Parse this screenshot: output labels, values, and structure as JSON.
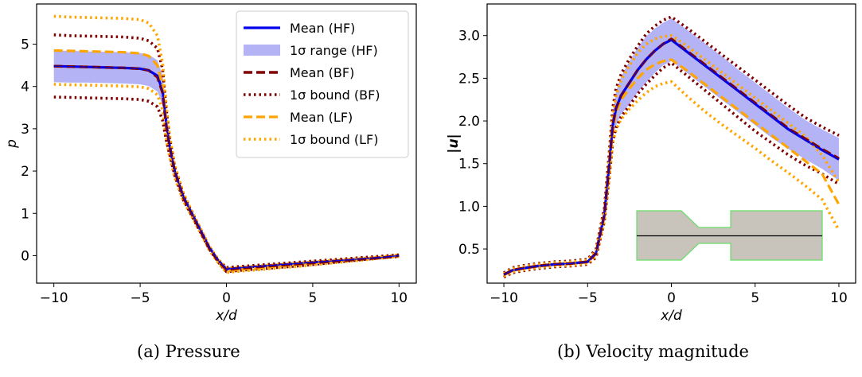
{
  "colors": {
    "hf": "#0000ee",
    "hf_band": "#b3b3f5",
    "bf": "#800000",
    "lf": "#ffa500",
    "inset_fill": "#c8c4bc",
    "inset_edge": "#66dd66"
  },
  "captions": {
    "a": "(a) Pressure",
    "b": "(b) Velocity magnitude"
  },
  "legend": [
    {
      "label": "Mean (HF)",
      "style": "solid-blue"
    },
    {
      "label": "1σ range (HF)",
      "style": "band"
    },
    {
      "label": "Mean (BF)",
      "style": "dash-bf"
    },
    {
      "label": "1σ bound (BF)",
      "style": "dot-bf"
    },
    {
      "label": "Mean (LF)",
      "style": "dash-lf"
    },
    {
      "label": "1σ bound (LF)",
      "style": "dot-lf"
    }
  ],
  "chart_data": [
    {
      "type": "line",
      "title": "",
      "xlabel": "x/d",
      "ylabel": "p",
      "xlim": [
        -11,
        11
      ],
      "ylim": [
        -0.65,
        5.95
      ],
      "xticks": [
        -10,
        -5,
        0,
        5,
        10
      ],
      "xtick_labels": [
        "−10",
        "−5",
        "0",
        "5",
        "10"
      ],
      "yticks": [
        0,
        1,
        2,
        3,
        4,
        5
      ],
      "ytick_labels": [
        "0",
        "1",
        "2",
        "3",
        "4",
        "5"
      ],
      "x": [
        -10,
        -9,
        -8,
        -7,
        -6,
        -5,
        -4.5,
        -4,
        -3.7,
        -3.5,
        -3.3,
        -3,
        -2.5,
        -2,
        -1.5,
        -1,
        -0.5,
        0,
        1,
        2,
        3,
        4,
        5,
        6,
        7,
        8,
        9,
        10
      ],
      "series": [
        {
          "name": "Mean (HF)",
          "values": [
            4.48,
            4.47,
            4.46,
            4.45,
            4.44,
            4.42,
            4.38,
            4.25,
            3.9,
            3.2,
            2.6,
            2.0,
            1.4,
            1.0,
            0.6,
            0.2,
            -0.1,
            -0.32,
            -0.28,
            -0.25,
            -0.22,
            -0.19,
            -0.16,
            -0.13,
            -0.1,
            -0.07,
            -0.04,
            0.0
          ]
        },
        {
          "name": "1σ range (HF) upper",
          "values": [
            4.85,
            4.84,
            4.83,
            4.82,
            4.81,
            4.79,
            4.75,
            4.62,
            4.25,
            3.5,
            2.8,
            2.1,
            1.45,
            1.03,
            0.62,
            0.21,
            -0.09,
            -0.3,
            -0.26,
            -0.23,
            -0.2,
            -0.17,
            -0.14,
            -0.11,
            -0.08,
            -0.05,
            -0.02,
            0.02
          ]
        },
        {
          "name": "1σ range (HF) lower",
          "values": [
            4.1,
            4.09,
            4.09,
            4.08,
            4.07,
            4.05,
            4.01,
            3.88,
            3.55,
            2.9,
            2.4,
            1.9,
            1.35,
            0.97,
            0.58,
            0.19,
            -0.11,
            -0.34,
            -0.3,
            -0.27,
            -0.24,
            -0.21,
            -0.18,
            -0.15,
            -0.12,
            -0.09,
            -0.06,
            -0.02
          ]
        },
        {
          "name": "Mean (BF)",
          "values": [
            4.48,
            4.47,
            4.46,
            4.45,
            4.44,
            4.42,
            4.38,
            4.22,
            3.85,
            3.1,
            2.6,
            2.0,
            1.38,
            0.98,
            0.58,
            0.18,
            -0.12,
            -0.33,
            -0.29,
            -0.26,
            -0.23,
            -0.2,
            -0.17,
            -0.14,
            -0.11,
            -0.08,
            -0.05,
            0.0
          ]
        },
        {
          "name": "1σ bound (BF) upper",
          "values": [
            5.22,
            5.2,
            5.19,
            5.18,
            5.17,
            5.14,
            5.08,
            4.9,
            4.4,
            3.5,
            2.8,
            2.1,
            1.45,
            1.03,
            0.62,
            0.21,
            -0.09,
            -0.28,
            -0.25,
            -0.22,
            -0.19,
            -0.16,
            -0.13,
            -0.1,
            -0.07,
            -0.04,
            -0.01,
            0.02
          ]
        },
        {
          "name": "1σ bound (BF) lower",
          "values": [
            3.75,
            3.74,
            3.73,
            3.72,
            3.71,
            3.69,
            3.65,
            3.52,
            3.2,
            2.75,
            2.4,
            1.9,
            1.32,
            0.94,
            0.55,
            0.16,
            -0.14,
            -0.38,
            -0.34,
            -0.31,
            -0.28,
            -0.25,
            -0.21,
            -0.17,
            -0.13,
            -0.09,
            -0.05,
            -0.02
          ]
        },
        {
          "name": "Mean (LF)",
          "values": [
            4.85,
            4.84,
            4.83,
            4.82,
            4.81,
            4.78,
            4.72,
            4.5,
            4.0,
            3.2,
            2.6,
            2.0,
            1.38,
            0.98,
            0.58,
            0.18,
            -0.13,
            -0.36,
            -0.32,
            -0.29,
            -0.25,
            -0.21,
            -0.18,
            -0.14,
            -0.1,
            -0.07,
            -0.04,
            0.0
          ]
        },
        {
          "name": "1σ bound (LF) upper",
          "values": [
            5.66,
            5.64,
            5.63,
            5.62,
            5.61,
            5.58,
            5.5,
            5.2,
            4.55,
            3.6,
            2.85,
            2.15,
            1.48,
            1.05,
            0.64,
            0.23,
            -0.08,
            -0.3,
            -0.27,
            -0.24,
            -0.21,
            -0.18,
            -0.15,
            -0.12,
            -0.09,
            -0.06,
            -0.03,
            0.02
          ]
        },
        {
          "name": "1σ bound (LF) lower",
          "values": [
            4.05,
            4.04,
            4.03,
            4.02,
            4.01,
            3.99,
            3.95,
            3.8,
            3.45,
            2.8,
            2.35,
            1.85,
            1.3,
            0.92,
            0.53,
            0.14,
            -0.16,
            -0.4,
            -0.36,
            -0.33,
            -0.29,
            -0.26,
            -0.22,
            -0.18,
            -0.14,
            -0.1,
            -0.06,
            -0.02
          ]
        }
      ]
    },
    {
      "type": "line",
      "title": "",
      "xlabel": "x/d",
      "ylabel": "|u|",
      "xlim": [
        -11,
        11
      ],
      "ylim": [
        0.1,
        3.37
      ],
      "xticks": [
        -10,
        -5,
        0,
        5,
        10
      ],
      "xtick_labels": [
        "−10",
        "−5",
        "0",
        "5",
        "10"
      ],
      "yticks": [
        0.5,
        1.0,
        1.5,
        2.0,
        2.5,
        3.0
      ],
      "ytick_labels": [
        "0.5",
        "1.0",
        "1.5",
        "2.0",
        "2.5",
        "3.0"
      ],
      "x": [
        -10,
        -9.5,
        -9,
        -8,
        -7,
        -6,
        -5,
        -4.5,
        -4,
        -3.7,
        -3.5,
        -3.3,
        -3,
        -2.5,
        -2,
        -1.5,
        -1,
        -0.5,
        0,
        1,
        2,
        3,
        4,
        5,
        6,
        7,
        8,
        9,
        10
      ],
      "series": [
        {
          "name": "Mean (HF)",
          "values": [
            0.2,
            0.25,
            0.27,
            0.3,
            0.32,
            0.33,
            0.35,
            0.45,
            0.9,
            1.5,
            1.95,
            2.15,
            2.3,
            2.45,
            2.6,
            2.72,
            2.82,
            2.9,
            2.95,
            2.8,
            2.65,
            2.5,
            2.35,
            2.2,
            2.05,
            1.9,
            1.78,
            1.66,
            1.55
          ]
        },
        {
          "name": "1σ range (HF) upper",
          "values": [
            0.22,
            0.27,
            0.29,
            0.32,
            0.34,
            0.35,
            0.37,
            0.48,
            0.95,
            1.6,
            2.1,
            2.35,
            2.52,
            2.7,
            2.86,
            2.99,
            3.08,
            3.15,
            3.2,
            3.06,
            2.91,
            2.76,
            2.6,
            2.45,
            2.3,
            2.15,
            2.01,
            1.9,
            1.8
          ]
        },
        {
          "name": "1σ range (HF) lower",
          "values": [
            0.18,
            0.23,
            0.25,
            0.28,
            0.3,
            0.31,
            0.33,
            0.42,
            0.85,
            1.4,
            1.8,
            1.95,
            2.08,
            2.2,
            2.34,
            2.45,
            2.56,
            2.65,
            2.7,
            2.55,
            2.4,
            2.25,
            2.1,
            1.95,
            1.8,
            1.67,
            1.55,
            1.44,
            1.3
          ]
        },
        {
          "name": "Mean (BF)",
          "values": [
            0.2,
            0.25,
            0.27,
            0.3,
            0.32,
            0.33,
            0.35,
            0.45,
            0.9,
            1.5,
            1.95,
            2.15,
            2.3,
            2.45,
            2.6,
            2.72,
            2.82,
            2.9,
            2.96,
            2.81,
            2.66,
            2.51,
            2.36,
            2.21,
            2.06,
            1.91,
            1.79,
            1.67,
            1.56
          ]
        },
        {
          "name": "1σ bound (BF) upper",
          "values": [
            0.22,
            0.28,
            0.3,
            0.33,
            0.35,
            0.36,
            0.38,
            0.5,
            0.98,
            1.65,
            2.15,
            2.38,
            2.55,
            2.73,
            2.88,
            3.02,
            3.11,
            3.18,
            3.22,
            3.08,
            2.93,
            2.78,
            2.63,
            2.48,
            2.33,
            2.18,
            2.04,
            1.93,
            1.83
          ]
        },
        {
          "name": "1σ bound (BF) lower",
          "values": [
            0.17,
            0.22,
            0.24,
            0.27,
            0.29,
            0.3,
            0.32,
            0.4,
            0.82,
            1.35,
            1.75,
            1.92,
            2.05,
            2.18,
            2.32,
            2.43,
            2.53,
            2.62,
            2.68,
            2.52,
            2.36,
            2.2,
            2.04,
            1.88,
            1.74,
            1.6,
            1.48,
            1.38,
            1.26
          ]
        },
        {
          "name": "Mean (LF)",
          "values": [
            0.2,
            0.25,
            0.27,
            0.3,
            0.32,
            0.33,
            0.35,
            0.45,
            0.88,
            1.45,
            1.9,
            2.1,
            2.25,
            2.38,
            2.5,
            2.6,
            2.66,
            2.7,
            2.72,
            2.58,
            2.43,
            2.28,
            2.13,
            1.98,
            1.83,
            1.68,
            1.53,
            1.38,
            1.02
          ]
        },
        {
          "name": "1σ bound (LF) upper",
          "values": [
            0.21,
            0.27,
            0.29,
            0.32,
            0.34,
            0.35,
            0.37,
            0.48,
            0.95,
            1.58,
            2.05,
            2.3,
            2.48,
            2.65,
            2.8,
            2.9,
            2.96,
            2.99,
            3.0,
            2.87,
            2.72,
            2.57,
            2.42,
            2.27,
            2.12,
            1.97,
            1.82,
            1.6,
            1.28
          ]
        },
        {
          "name": "1σ bound (LF) lower",
          "values": [
            0.18,
            0.23,
            0.25,
            0.28,
            0.3,
            0.31,
            0.33,
            0.42,
            0.82,
            1.35,
            1.75,
            1.9,
            2.02,
            2.14,
            2.24,
            2.33,
            2.4,
            2.44,
            2.46,
            2.28,
            2.11,
            1.96,
            1.82,
            1.68,
            1.53,
            1.39,
            1.24,
            1.08,
            0.72
          ]
        }
      ]
    }
  ]
}
